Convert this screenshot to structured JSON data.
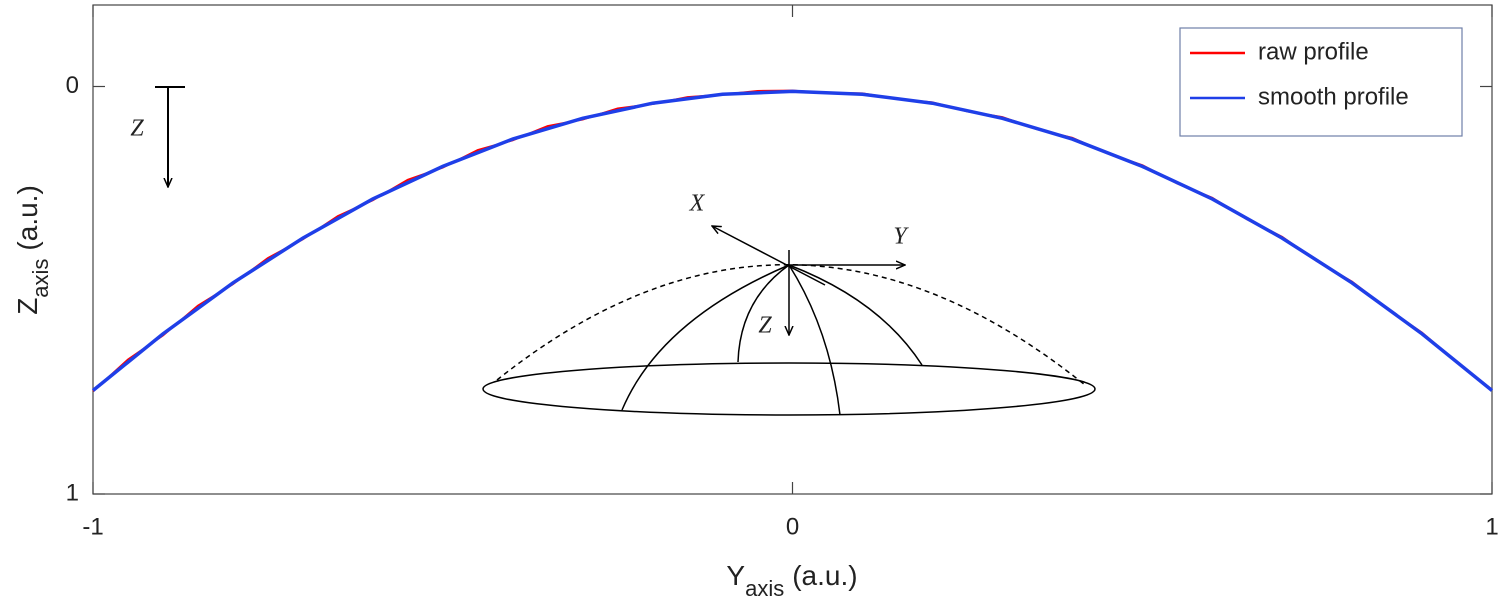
{
  "chart_data": {
    "type": "line",
    "xlabel": [
      "Y",
      "axis",
      "(a.u.)"
    ],
    "ylabel": [
      "Z",
      "axis",
      "(a.u.)"
    ],
    "xlim": [
      -1,
      1
    ],
    "xticks": [
      -1,
      0,
      1
    ],
    "ylim": [
      -0.2,
      1
    ],
    "yticks": [
      0,
      1
    ],
    "y_reversed": true,
    "legend": "upper right",
    "annotations": [
      "Z",
      "X",
      "Y",
      "Z"
    ],
    "series": [
      {
        "name": "raw profile",
        "color": "#ff0000",
        "x": [
          -1,
          -0.95,
          -0.9,
          -0.85,
          -0.8,
          -0.75,
          -0.7,
          -0.65,
          -0.6,
          -0.55,
          -0.5,
          -0.45,
          -0.4,
          -0.35,
          -0.3,
          -0.25,
          -0.2,
          -0.15,
          -0.1,
          -0.05,
          0,
          0.05,
          0.1,
          0.15,
          0.2,
          0.25,
          0.3,
          0.35,
          0.4,
          0.45,
          0.5,
          0.55,
          0.6,
          0.65,
          0.7,
          0.75,
          0.8,
          0.85,
          0.9,
          0.95,
          1
        ],
        "values": [
          0.748,
          0.67,
          0.611,
          0.538,
          0.485,
          0.421,
          0.375,
          0.318,
          0.279,
          0.229,
          0.199,
          0.156,
          0.132,
          0.097,
          0.081,
          0.054,
          0.043,
          0.026,
          0.02,
          0.011,
          0.01,
          0.016,
          0.017,
          0.031,
          0.039,
          0.061,
          0.075,
          0.105,
          0.126,
          0.164,
          0.193,
          0.238,
          0.273,
          0.326,
          0.369,
          0.429,
          0.479,
          0.545,
          0.604,
          0.677,
          0.744
        ]
      },
      {
        "name": "smooth profile",
        "color": "#1f3fe8",
        "x": [
          -1,
          -0.9,
          -0.8,
          -0.7,
          -0.6,
          -0.5,
          -0.4,
          -0.3,
          -0.2,
          -0.1,
          0,
          0.1,
          0.2,
          0.3,
          0.4,
          0.5,
          0.6,
          0.7,
          0.8,
          0.9,
          1
        ],
        "values": [
          0.746,
          0.607,
          0.482,
          0.372,
          0.276,
          0.196,
          0.129,
          0.078,
          0.041,
          0.019,
          0.012,
          0.019,
          0.041,
          0.078,
          0.129,
          0.196,
          0.276,
          0.372,
          0.482,
          0.607,
          0.746
        ]
      }
    ]
  }
}
